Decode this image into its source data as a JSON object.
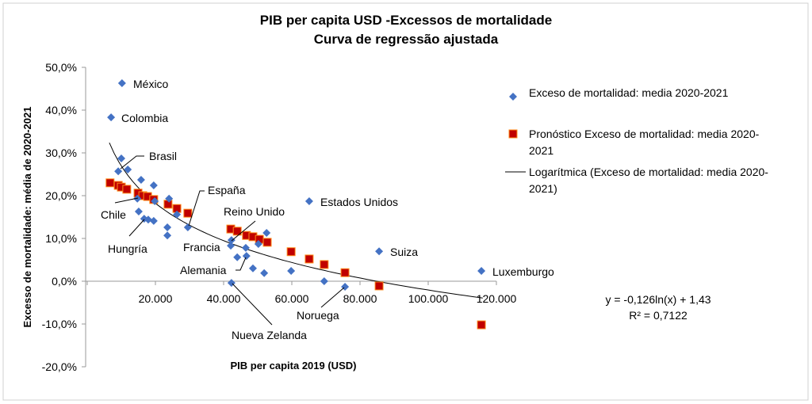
{
  "chart_data": {
    "type": "scatter",
    "title": [
      "PIB per capita USD -Excessos de mortalidade",
      "Curva de regressão ajustada"
    ],
    "xlabel": "PIB per capita 2019 (USD)",
    "ylabel": "Excesso de mortalidade: média de 2020-2021",
    "xlim": [
      0,
      120000
    ],
    "ylim": [
      -0.2,
      0.5
    ],
    "x_ticks": [
      "20.000",
      "40.000",
      "60.000",
      "80.000",
      "100.000",
      "120.000"
    ],
    "y_ticks": [
      "50,0%",
      "40,0%",
      "30,0%",
      "20,0%",
      "10,0%",
      "0,0%",
      "-10,0%",
      "-20,0%"
    ],
    "grid": false,
    "legend_placement": "right",
    "colors": {
      "actual": "#4472C4",
      "forecast": "#C00000",
      "trend": "#000000",
      "forecast_edge": "#FF8C1A"
    },
    "series": [
      {
        "name": "Exceso de mortalidad: media 2020-2021",
        "marker": "diamond",
        "points": [
          [
            10200,
            0.463
          ],
          [
            7000,
            0.383
          ],
          [
            10000,
            0.287
          ],
          [
            9100,
            0.257
          ],
          [
            11900,
            0.261
          ],
          [
            15800,
            0.237
          ],
          [
            19500,
            0.224
          ],
          [
            14700,
            0.193
          ],
          [
            19800,
            0.187
          ],
          [
            24000,
            0.193
          ],
          [
            26300,
            0.156
          ],
          [
            15100,
            0.163
          ],
          [
            16700,
            0.146
          ],
          [
            17900,
            0.144
          ],
          [
            19500,
            0.141
          ],
          [
            23500,
            0.126
          ],
          [
            23500,
            0.107
          ],
          [
            29500,
            0.126
          ],
          [
            42300,
            0.096
          ],
          [
            42100,
            0.083
          ],
          [
            44000,
            0.056
          ],
          [
            46500,
            0.078
          ],
          [
            46700,
            0.059
          ],
          [
            48600,
            0.03
          ],
          [
            51900,
            0.019
          ],
          [
            52600,
            0.113
          ],
          [
            42300,
            -0.004
          ],
          [
            50200,
            0.087
          ],
          [
            65100,
            0.187
          ],
          [
            59800,
            0.024
          ],
          [
            69500,
            0.0
          ],
          [
            75600,
            -0.013
          ],
          [
            85600,
            0.07
          ],
          [
            115600,
            0.024
          ]
        ]
      },
      {
        "name": "Pronóstico Exceso de mortalidad: media 2020-2021",
        "marker": "square",
        "points": [
          [
            6700,
            0.23
          ],
          [
            9100,
            0.224
          ],
          [
            10000,
            0.22
          ],
          [
            11600,
            0.215
          ],
          [
            14900,
            0.206
          ],
          [
            16300,
            0.2
          ],
          [
            17700,
            0.198
          ],
          [
            19500,
            0.191
          ],
          [
            23700,
            0.18
          ],
          [
            26300,
            0.17
          ],
          [
            29500,
            0.159
          ],
          [
            42100,
            0.122
          ],
          [
            44000,
            0.117
          ],
          [
            46700,
            0.107
          ],
          [
            48600,
            0.104
          ],
          [
            50500,
            0.098
          ],
          [
            52800,
            0.091
          ],
          [
            59800,
            0.069
          ],
          [
            65100,
            0.052
          ],
          [
            69500,
            0.039
          ],
          [
            75600,
            0.02
          ],
          [
            85600,
            -0.011
          ],
          [
            115600,
            -0.102
          ]
        ]
      },
      {
        "name": "Logarítmica (Exceso de mortalidad: media 2020-2021)",
        "type": "trendline",
        "equation": "y = -0,126ln(x) + 1,43",
        "r_squared": "R² = 0,7122",
        "a": -0.126,
        "b": 1.43,
        "x_range": [
          6500,
          116000
        ]
      }
    ],
    "legend": [
      [
        "Exceso de mortalidad: media 2020-2021"
      ],
      [
        "Pronóstico Exceso de mortalidad: media 2020-",
        "2021"
      ],
      [
        "Logarítmica (Exceso de mortalidad: media 2020-",
        "2021)"
      ]
    ],
    "annotations": [
      "México",
      "Colombia",
      "Brasil",
      "Chile",
      "Hungría",
      "España",
      "Reino Unido",
      "Francia",
      "Alemania",
      "Nueva Zelanda",
      "Estados Unidos",
      "Suiza",
      "Luxemburgo",
      "Noruega"
    ]
  }
}
